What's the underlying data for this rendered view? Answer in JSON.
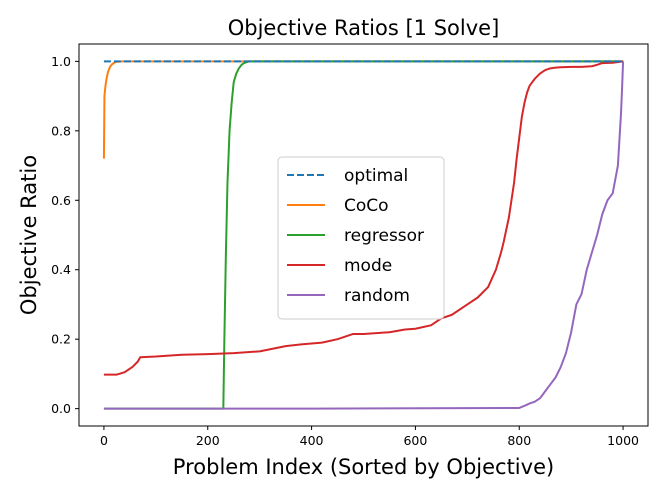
{
  "chart_data": {
    "type": "line",
    "title": "Objective Ratios [1 Solve]",
    "xlabel": "Problem Index (Sorted by Objective)",
    "ylabel": "Objective Ratio",
    "xlim": [
      -48,
      1048
    ],
    "ylim": [
      -0.05,
      1.05
    ],
    "xticks": [
      0,
      200,
      400,
      600,
      800,
      1000
    ],
    "yticks": [
      0.0,
      0.2,
      0.4,
      0.6,
      0.8,
      1.0
    ],
    "xtick_labels": [
      "0",
      "200",
      "400",
      "600",
      "800",
      "1000"
    ],
    "ytick_labels": [
      "0.0",
      "0.2",
      "0.4",
      "0.6",
      "0.8",
      "1.0"
    ],
    "grid": false,
    "legend_position": "center",
    "series": [
      {
        "name": "optimal",
        "color": "#1f77b4",
        "dashed": true,
        "x": [
          0,
          1000
        ],
        "y": [
          1.0,
          1.0
        ]
      },
      {
        "name": "CoCo",
        "color": "#ff7f0e",
        "dashed": false,
        "x": [
          0,
          1,
          3,
          5,
          8,
          12,
          16,
          20,
          25,
          35,
          1000
        ],
        "y": [
          0.72,
          0.9,
          0.93,
          0.95,
          0.97,
          0.985,
          0.992,
          0.996,
          0.999,
          1.0,
          1.0
        ]
      },
      {
        "name": "regressor",
        "color": "#2ca02c",
        "dashed": false,
        "x": [
          0,
          230,
          232,
          235,
          238,
          242,
          246,
          250,
          255,
          260,
          265,
          270,
          275,
          280,
          290,
          1000
        ],
        "y": [
          0.0,
          0.0,
          0.2,
          0.45,
          0.65,
          0.8,
          0.88,
          0.94,
          0.965,
          0.98,
          0.99,
          0.995,
          0.998,
          1.0,
          1.0,
          1.0
        ]
      },
      {
        "name": "mode",
        "color": "#d62728",
        "dashed": false,
        "x": [
          0,
          25,
          40,
          55,
          65,
          70,
          100,
          150,
          200,
          250,
          300,
          350,
          380,
          420,
          450,
          480,
          500,
          550,
          580,
          600,
          630,
          650,
          670,
          700,
          720,
          740,
          755,
          765,
          770,
          780,
          790,
          795,
          800,
          805,
          810,
          815,
          820,
          830,
          840,
          850,
          860,
          870,
          880,
          900,
          920,
          940,
          950,
          960,
          980,
          1000
        ],
        "y": [
          0.098,
          0.098,
          0.105,
          0.12,
          0.135,
          0.148,
          0.15,
          0.155,
          0.157,
          0.16,
          0.165,
          0.18,
          0.185,
          0.19,
          0.2,
          0.215,
          0.215,
          0.22,
          0.228,
          0.23,
          0.24,
          0.26,
          0.27,
          0.3,
          0.32,
          0.35,
          0.4,
          0.45,
          0.48,
          0.55,
          0.65,
          0.72,
          0.78,
          0.84,
          0.88,
          0.91,
          0.93,
          0.95,
          0.965,
          0.975,
          0.98,
          0.982,
          0.983,
          0.984,
          0.984,
          0.986,
          0.99,
          0.995,
          0.996,
          1.0
        ]
      },
      {
        "name": "random",
        "color": "#9467bd",
        "dashed": false,
        "x": [
          0,
          400,
          800,
          810,
          820,
          830,
          840,
          850,
          860,
          870,
          880,
          890,
          900,
          910,
          920,
          930,
          940,
          950,
          960,
          970,
          980,
          990,
          994,
          996,
          998,
          1000
        ],
        "y": [
          0.0,
          0.0,
          0.002,
          0.008,
          0.015,
          0.02,
          0.03,
          0.05,
          0.07,
          0.09,
          0.12,
          0.16,
          0.22,
          0.3,
          0.33,
          0.4,
          0.45,
          0.5,
          0.56,
          0.6,
          0.62,
          0.7,
          0.8,
          0.85,
          0.92,
          1.0
        ]
      }
    ]
  }
}
